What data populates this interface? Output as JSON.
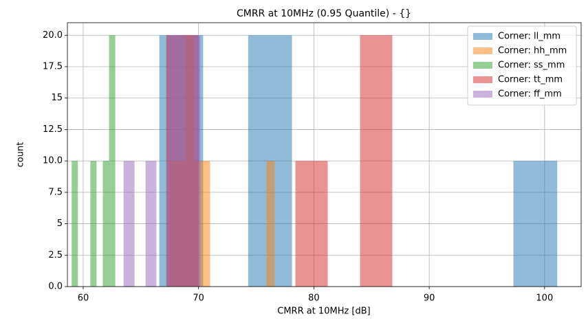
{
  "chart_data": {
    "type": "histogram",
    "title": "CMRR at 10MHz (0.95 Quantile) - {}",
    "x_label": "CMRR at 10MHz [dB]",
    "y_label": "count",
    "xlim": [
      58.63,
      103.17
    ],
    "xticks": [
      60,
      70,
      80,
      90,
      100
    ],
    "ylim": [
      0,
      21
    ],
    "yticks": [
      {
        "value": 0,
        "label": "0.0"
      },
      2.5,
      5.0,
      7.5,
      {
        "value": 10,
        "label": "10.0"
      },
      12.5,
      15.0,
      17.5,
      {
        "value": 20,
        "label": "20.0"
      }
    ],
    "grid": true,
    "legend": "upper right",
    "opacity": 0.5,
    "series": [
      {
        "name": "Corner: ll_mm",
        "color": "#1f77b4",
        "bins": [
          66.6,
          70.4,
          74.3,
          78.1,
          82.0,
          85.8,
          89.7,
          93.5,
          97.3,
          101.1
        ],
        "values": [
          20,
          0,
          20,
          0,
          0,
          0,
          0,
          0,
          10
        ]
      },
      {
        "name": "Corner: hh_mm",
        "color": "#ff7f0e",
        "bins": [
          67.5,
          68.2,
          68.9,
          69.6,
          70.3,
          71.0,
          71.7,
          72.4,
          73.1,
          73.8,
          74.5,
          75.2,
          75.9,
          76.6
        ],
        "values": [
          10,
          10,
          20,
          10,
          10,
          0,
          0,
          0,
          0,
          0,
          0,
          0,
          10
        ]
      },
      {
        "name": "Corner: ss_mm",
        "color": "#2ca02c",
        "bins": [
          59.0,
          59.54,
          60.08,
          60.62,
          61.16,
          61.7,
          62.24,
          62.78
        ],
        "values": [
          10,
          0,
          0,
          10,
          0,
          10,
          20
        ]
      },
      {
        "name": "Corner: tt_mm",
        "color": "#d62728",
        "bins": [
          67.2,
          70.0,
          72.8,
          75.6,
          78.4,
          81.2,
          84.0,
          86.8
        ],
        "values": [
          20,
          0,
          0,
          0,
          10,
          0,
          20
        ]
      },
      {
        "name": "Corner: ff_mm",
        "color": "#9467bd",
        "bins": [
          63.5,
          64.45,
          65.4,
          66.35,
          67.3,
          68.25,
          69.2,
          70.15
        ],
        "values": [
          10,
          0,
          10,
          0,
          20,
          20,
          20
        ]
      }
    ]
  }
}
